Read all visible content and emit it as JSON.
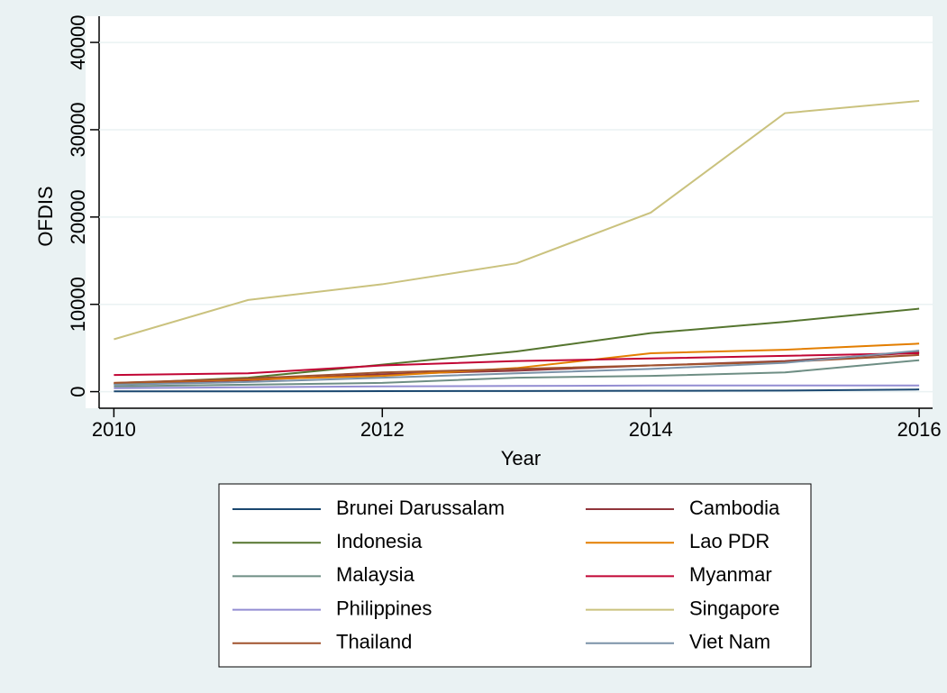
{
  "chart_data": {
    "type": "line",
    "xlabel": "Year",
    "ylabel": "OFDIS",
    "x": [
      2010,
      2011,
      2012,
      2013,
      2014,
      2015,
      2016
    ],
    "xlim": [
      2009.89,
      2016.1
    ],
    "xticks": [
      2010,
      2012,
      2014,
      2016
    ],
    "ylim": [
      -1900,
      43000
    ],
    "yticks": [
      0,
      10000,
      20000,
      30000,
      40000
    ],
    "grid": true,
    "legend": "bottom",
    "series": [
      {
        "name": "Brunei Darussalam",
        "color": "#1a476f",
        "values": [
          30,
          40,
          60,
          80,
          100,
          120,
          250
        ]
      },
      {
        "name": "Cambodia",
        "color": "#90353b",
        "values": [
          900,
          1300,
          2000,
          2400,
          3000,
          3500,
          4500
        ]
      },
      {
        "name": "Indonesia",
        "color": "#55752f",
        "values": [
          900,
          1600,
          3100,
          4600,
          6700,
          8000,
          9500
        ]
      },
      {
        "name": "Lao PDR",
        "color": "#e37e00",
        "values": [
          1000,
          1400,
          1800,
          2700,
          4400,
          4800,
          5500
        ]
      },
      {
        "name": "Malaysia",
        "color": "#6e8e84",
        "values": [
          600,
          800,
          1000,
          1600,
          1800,
          2200,
          3600
        ]
      },
      {
        "name": "Myanmar",
        "color": "#c10534",
        "values": [
          1900,
          2100,
          3000,
          3500,
          3800,
          4100,
          4400
        ]
      },
      {
        "name": "Philippines",
        "color": "#938dd2",
        "values": [
          400,
          500,
          600,
          650,
          700,
          700,
          700
        ]
      },
      {
        "name": "Singapore",
        "color": "#cac27e",
        "values": [
          6000,
          10500,
          12300,
          14700,
          20500,
          31900,
          33300
        ]
      },
      {
        "name": "Thailand",
        "color": "#a0522d",
        "values": [
          1000,
          1500,
          2200,
          2600,
          3000,
          3400,
          4200
        ]
      },
      {
        "name": "Viet Nam",
        "color": "#7b92a8",
        "values": [
          800,
          1100,
          1600,
          2100,
          2600,
          3300,
          4700
        ]
      }
    ]
  }
}
